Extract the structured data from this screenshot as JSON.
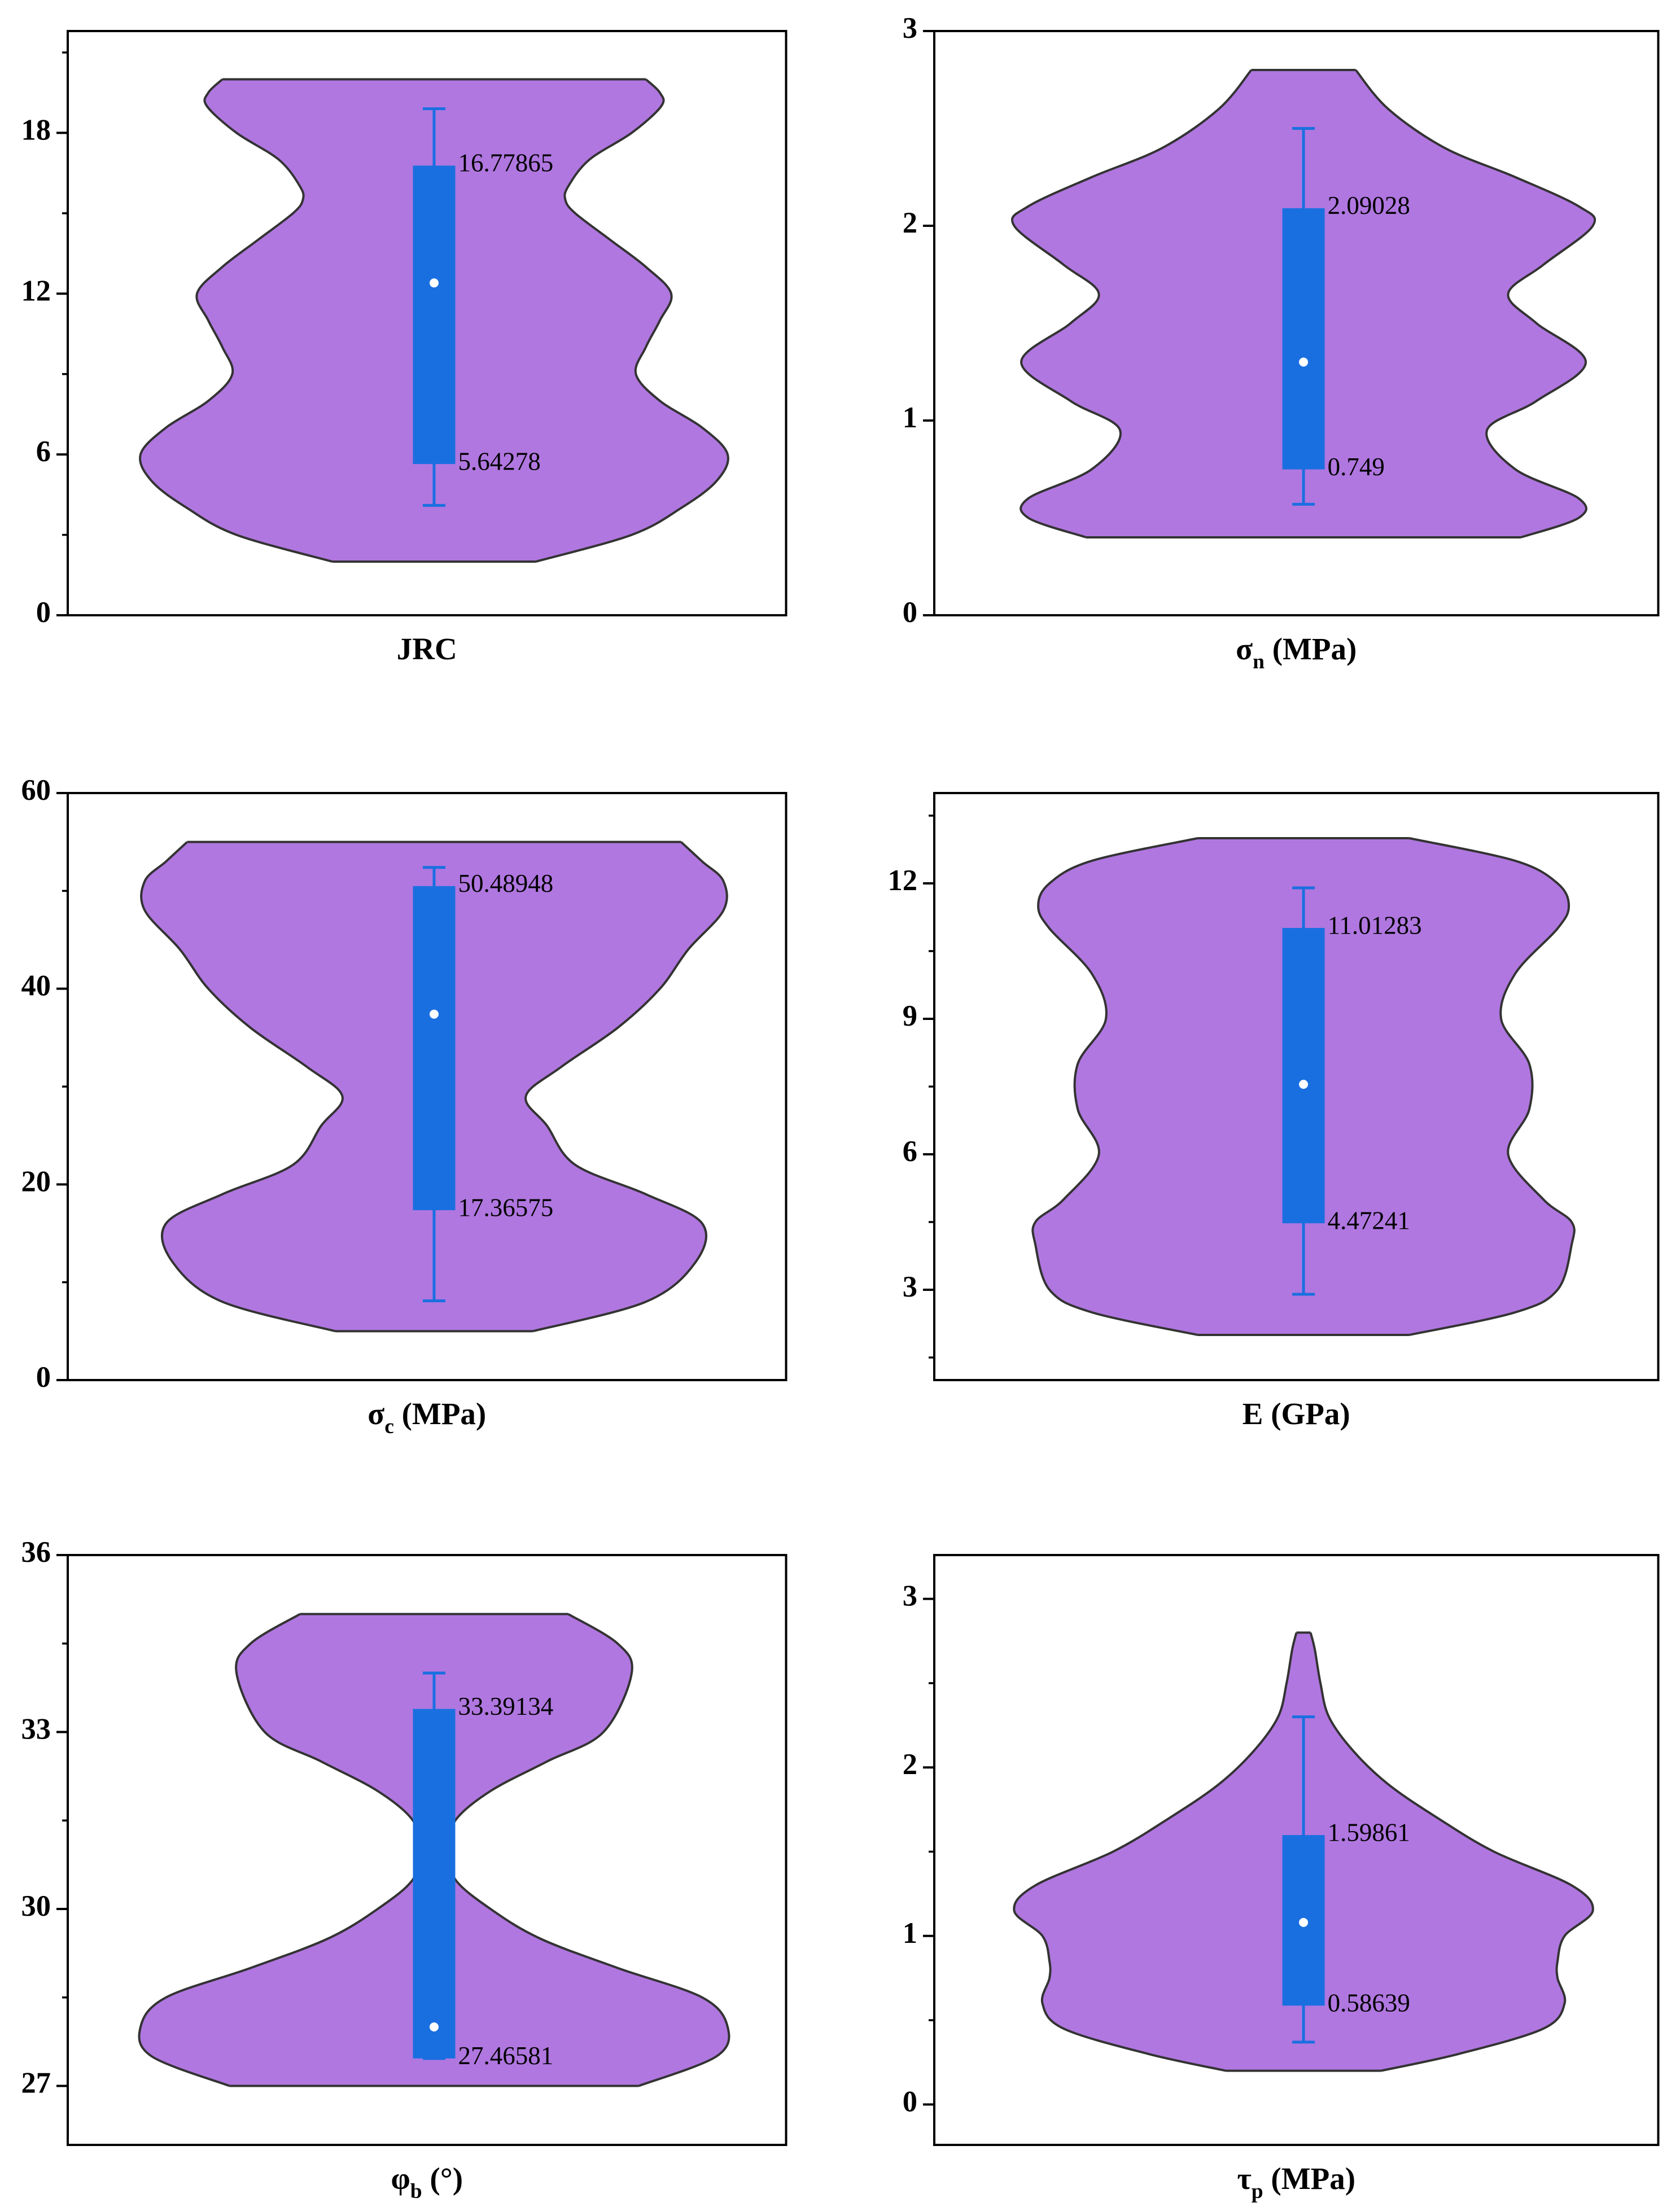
{
  "chart_data": [
    {
      "type": "violin",
      "xlabel": [
        "JRC"
      ],
      "ylim": [
        0,
        21.8
      ],
      "yticks": [
        0,
        6,
        12,
        18
      ],
      "minor_yticks": [
        3,
        9,
        15,
        21
      ],
      "violin": {
        "y": [
          2,
          3,
          4,
          5,
          6,
          7,
          8,
          9,
          10,
          11,
          12,
          13,
          14,
          15,
          15.5,
          16,
          17,
          18,
          19,
          19.5,
          20
        ],
        "width": [
          72,
          140,
          175,
          200,
          208,
          190,
          160,
          143,
          150,
          160,
          168,
          150,
          125,
          100,
          93,
          95,
          110,
          140,
          161,
          160,
          150
        ]
      },
      "box": {
        "q1": 5.64278,
        "q3": 16.77865,
        "whisker_low": 4.1,
        "whisker_high": 18.9,
        "median": 12.4
      },
      "violin_color": "#b077e0",
      "box_color": "#1a6fe0"
    },
    {
      "type": "violin",
      "xlabel": [
        "σ",
        "n",
        " (MPa)"
      ],
      "ylim": [
        0,
        3
      ],
      "yticks": [
        0,
        1,
        2,
        3
      ],
      "minor_yticks": [],
      "violin": {
        "y": [
          0.4,
          0.5,
          0.6,
          0.75,
          0.95,
          1.1,
          1.3,
          1.5,
          1.65,
          1.8,
          2.0,
          2.1,
          2.25,
          2.4,
          2.6,
          2.8
        ],
        "width": [
          154,
          195,
          195,
          150,
          130,
          165,
          200,
          165,
          145,
          170,
          205,
          195,
          150,
          100,
          60,
          37
        ]
      },
      "box": {
        "q1": 0.749,
        "q3": 2.09028,
        "whisker_low": 0.57,
        "whisker_high": 2.5,
        "median": 1.3
      },
      "violin_color": "#b077e0",
      "box_color": "#1a6fe0"
    },
    {
      "type": "violin",
      "xlabel": [
        "σ",
        "c",
        " (MPa)"
      ],
      "ylim": [
        0,
        60
      ],
      "yticks": [
        0,
        20,
        40,
        60
      ],
      "minor_yticks": [
        10,
        30,
        50
      ],
      "violin": {
        "y": [
          5,
          8,
          12,
          16,
          19,
          22,
          26,
          29,
          32,
          36,
          40,
          44,
          48,
          51,
          53,
          55
        ],
        "width": [
          70,
          150,
          185,
          190,
          150,
          100,
          80,
          65,
          90,
          130,
          160,
          180,
          205,
          205,
          190,
          175
        ]
      },
      "box": {
        "q1": 17.36575,
        "q3": 50.48948,
        "whisker_low": 8.1,
        "whisker_high": 52.4,
        "median": 37.4
      },
      "violin_color": "#b077e0",
      "box_color": "#1a6fe0"
    },
    {
      "type": "violin",
      "xlabel": [
        "E (GPa)"
      ],
      "ylim": [
        1,
        14
      ],
      "yticks": [
        3,
        6,
        9,
        12
      ],
      "minor_yticks": [
        1.5,
        4.5,
        7.5,
        10.5,
        13.5
      ],
      "violin": {
        "y": [
          2,
          2.5,
          3,
          4,
          4.5,
          5,
          6,
          7,
          8,
          9,
          10,
          11,
          11.5,
          12,
          12.5,
          13
        ],
        "width": [
          75,
          150,
          180,
          190,
          190,
          170,
          145,
          160,
          160,
          140,
          150,
          180,
          188,
          180,
          150,
          75
        ]
      },
      "box": {
        "q1": 4.47241,
        "q3": 11.01283,
        "whisker_low": 2.9,
        "whisker_high": 11.9,
        "median": 7.55
      },
      "violin_color": "#b077e0",
      "box_color": "#1a6fe0"
    },
    {
      "type": "violin",
      "xlabel": [
        "φ",
        "b",
        " (°)"
      ],
      "ylim": [
        26,
        36
      ],
      "yticks": [
        27,
        30,
        33,
        36
      ],
      "minor_yticks": [
        28.5,
        31.5,
        34.5
      ],
      "violin": {
        "y": [
          27,
          27.5,
          28,
          28.5,
          29,
          29.5,
          30,
          30.5,
          31,
          31.5,
          32,
          32.5,
          33,
          34,
          34.5,
          35
        ],
        "width": [
          145,
          200,
          208,
          190,
          130,
          75,
          40,
          15,
          10,
          15,
          40,
          80,
          120,
          140,
          130,
          95
        ]
      },
      "box": {
        "q1": 27.46581,
        "q3": 33.39134,
        "whisker_low": 27.46581,
        "whisker_high": 34,
        "median": 28
      },
      "violin_color": "#b077e0",
      "box_color": "#1a6fe0"
    },
    {
      "type": "violin",
      "xlabel": [
        "τ",
        "p",
        " (MPa)"
      ],
      "ylim": [
        -0.24,
        3.26
      ],
      "yticks": [
        0,
        1,
        2,
        3
      ],
      "minor_yticks": [
        0.5,
        1.5,
        2.5
      ],
      "violin": {
        "y": [
          0.2,
          0.3,
          0.45,
          0.6,
          0.75,
          0.85,
          1.0,
          1.15,
          1.3,
          1.5,
          1.7,
          1.9,
          2.1,
          2.3,
          2.5,
          2.7,
          2.8
        ],
        "width": [
          55,
          110,
          170,
          185,
          180,
          180,
          185,
          205,
          190,
          135,
          95,
          60,
          35,
          18,
          12,
          8,
          5
        ]
      },
      "box": {
        "q1": 0.58639,
        "q3": 1.59861,
        "whisker_low": 0.37,
        "whisker_high": 2.3,
        "median": 1.08
      },
      "violin_color": "#b077e0",
      "box_color": "#1a6fe0"
    }
  ]
}
